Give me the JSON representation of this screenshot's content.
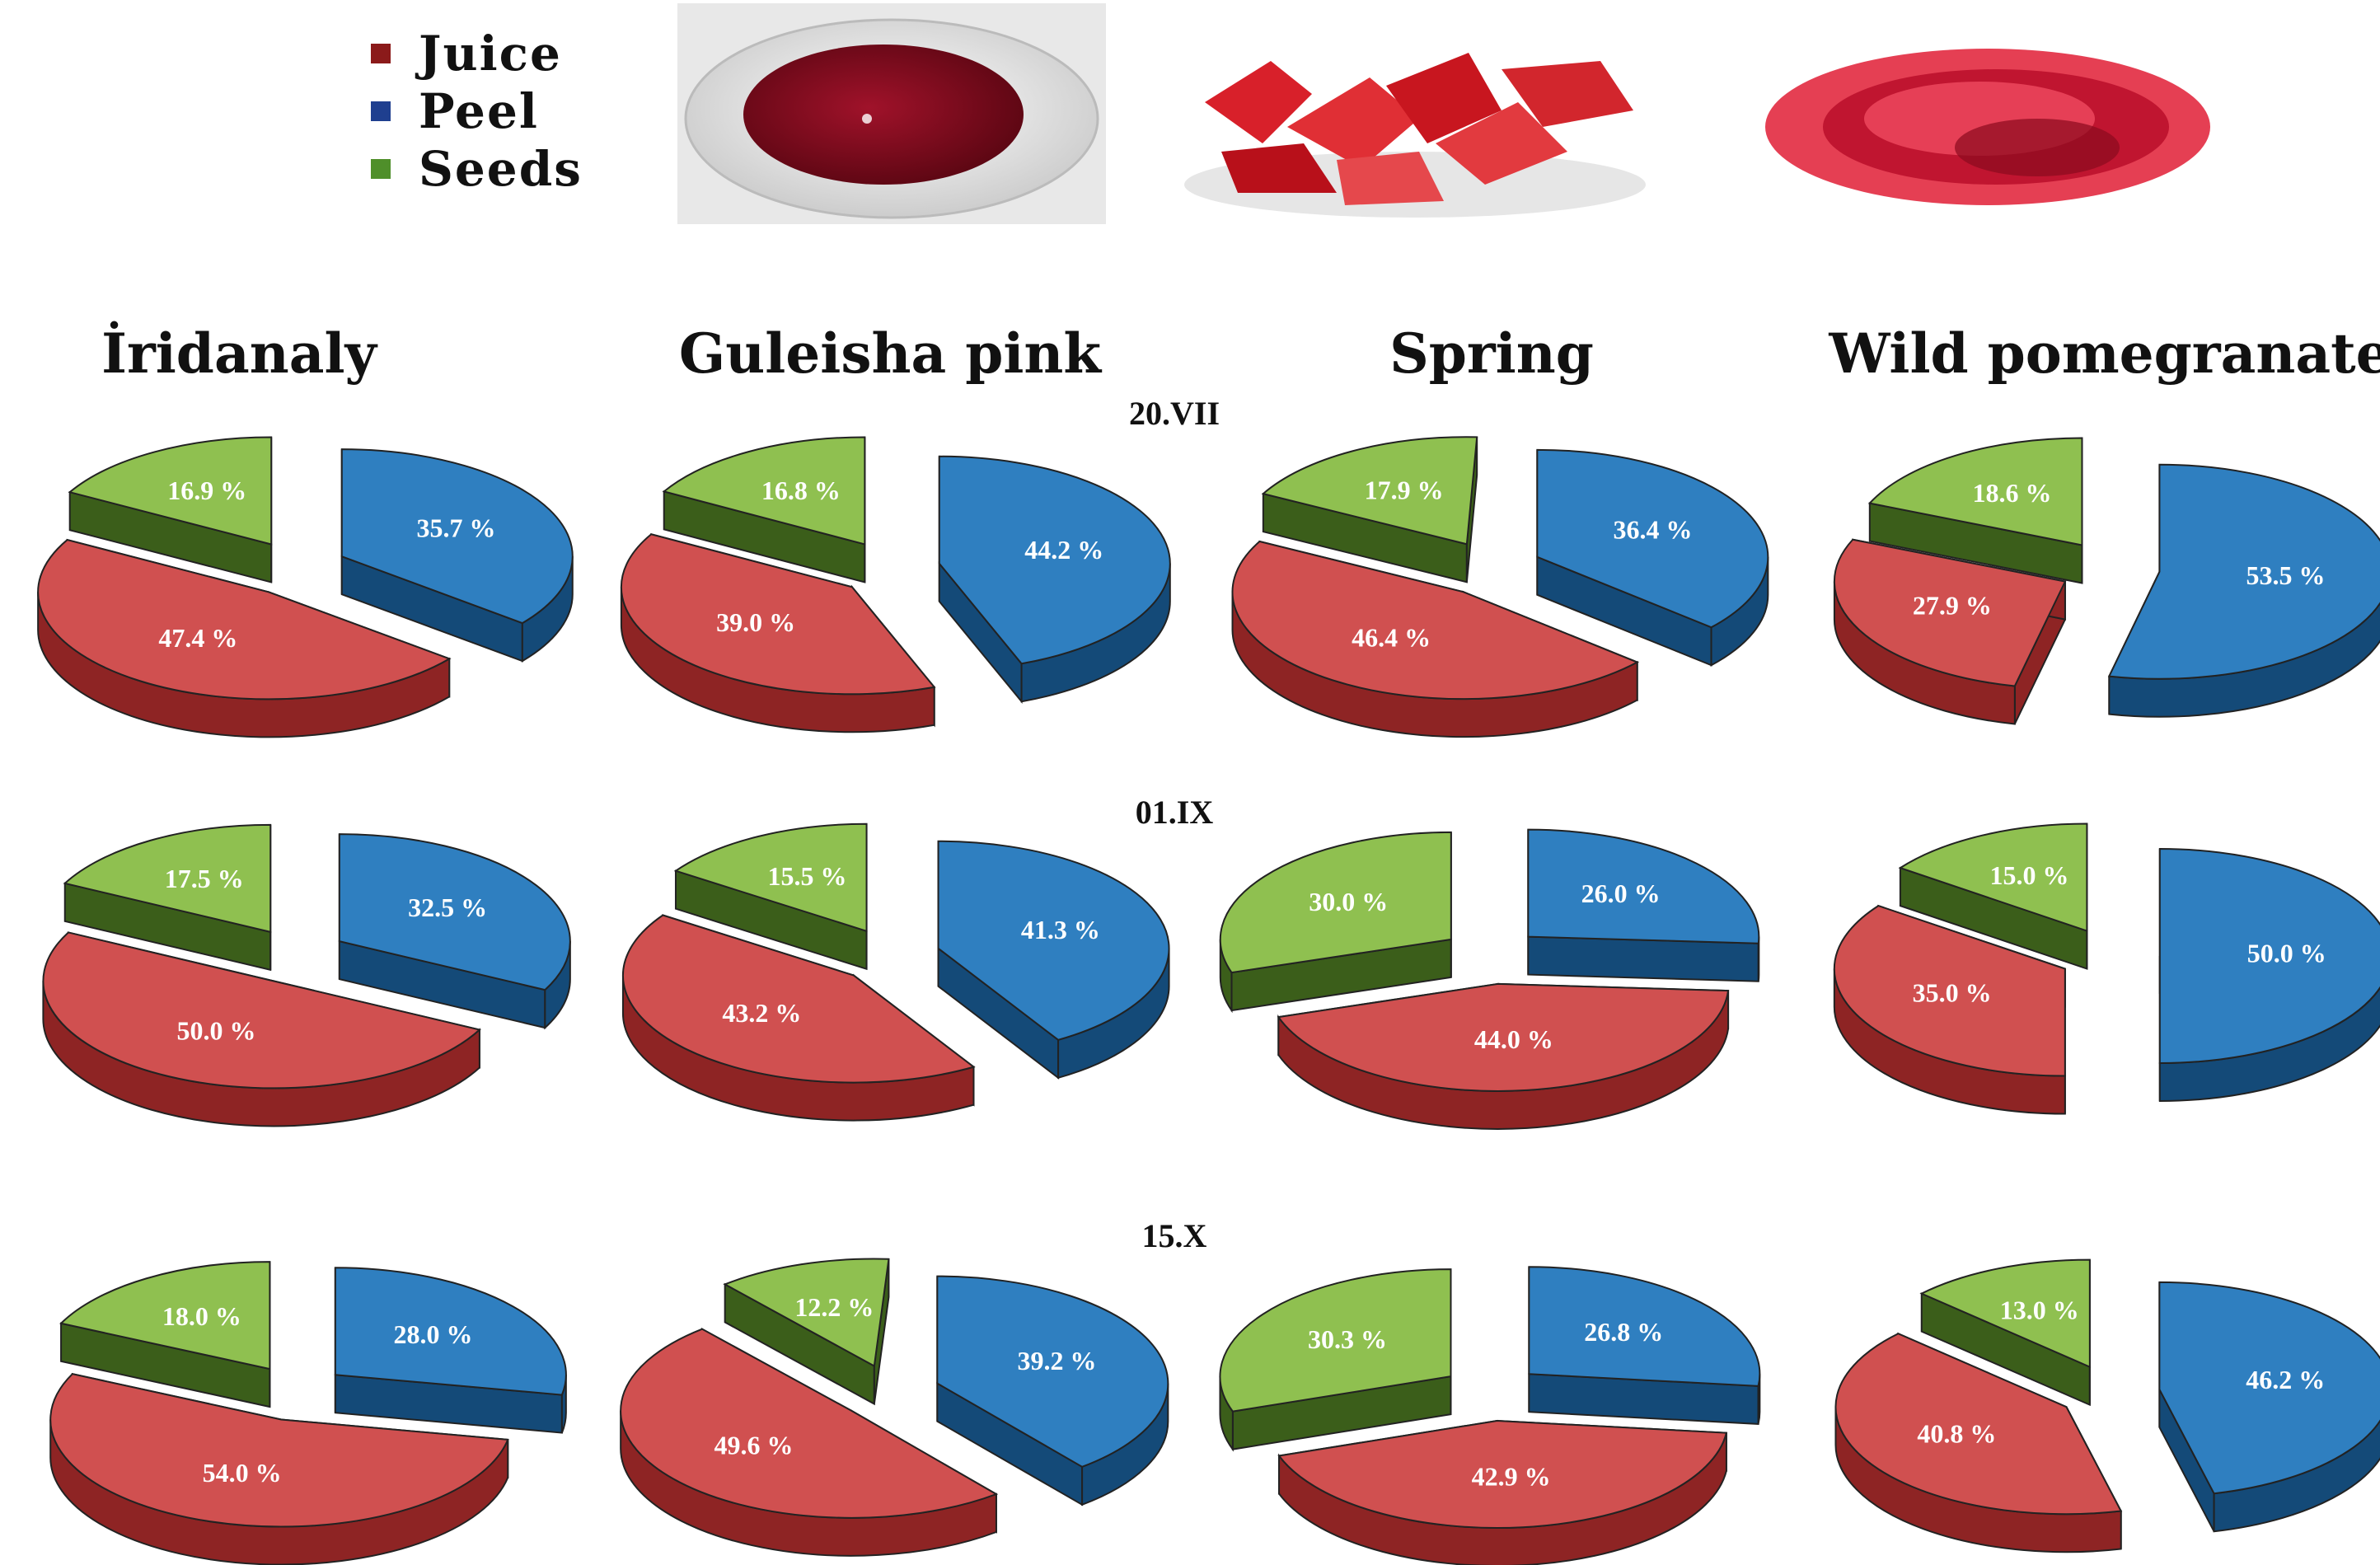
{
  "legend": [
    {
      "label": "Juice",
      "color": "#8b1a1a"
    },
    {
      "label": "Peel",
      "color": "#1f3f8f"
    },
    {
      "label": "Seeds",
      "color": "#4f8f2a"
    }
  ],
  "colors": {
    "juice_top": "#d05050",
    "juice_side": "#8e2424",
    "peel_top": "#2f7fc0",
    "peel_side": "#144a78",
    "seeds_top": "#8fc050",
    "seeds_side": "#3b5e1a",
    "outline": "#222222"
  },
  "photos": [
    {
      "name": "juice-bowl-photo"
    },
    {
      "name": "peel-pieces-photo"
    },
    {
      "name": "seeds-photo"
    }
  ],
  "varieties": [
    "İridanaly",
    "Guleisha pink",
    "Spring",
    "Wild pomegranate"
  ],
  "dates": [
    "20.VII",
    "01.IX",
    "15.X"
  ],
  "chart_data": {
    "type": "pie",
    "categories": [
      "Juice",
      "Peel",
      "Seeds"
    ],
    "unit": "%",
    "panels": [
      {
        "date": "20.VII",
        "variety": "İridanaly",
        "Juice": 47.4,
        "Peel": 35.7,
        "Seeds": 16.9
      },
      {
        "date": "20.VII",
        "variety": "Guleisha pink",
        "Juice": 39.0,
        "Peel": 44.2,
        "Seeds": 16.8
      },
      {
        "date": "20.VII",
        "variety": "Spring",
        "Juice": 46.4,
        "Peel": 36.4,
        "Seeds": 17.9
      },
      {
        "date": "20.VII",
        "variety": "Wild pomegranate",
        "Juice": 27.9,
        "Peel": 53.5,
        "Seeds": 18.6
      },
      {
        "date": "01.IX",
        "variety": "İridanaly",
        "Juice": 50.0,
        "Peel": 32.5,
        "Seeds": 17.5
      },
      {
        "date": "01.IX",
        "variety": "Guleisha pink",
        "Juice": 43.2,
        "Peel": 41.3,
        "Seeds": 15.5
      },
      {
        "date": "01.IX",
        "variety": "Spring",
        "Juice": 44.0,
        "Peel": 26.0,
        "Seeds": 30.0
      },
      {
        "date": "01.IX",
        "variety": "Wild pomegranate",
        "Juice": 35.0,
        "Peel": 50.0,
        "Seeds": 15.0
      },
      {
        "date": "15.X",
        "variety": "İridanaly",
        "Juice": 54.0,
        "Peel": 28.0,
        "Seeds": 18.0
      },
      {
        "date": "15.X",
        "variety": "Guleisha pink",
        "Juice": 49.6,
        "Peel": 39.2,
        "Seeds": 12.2
      },
      {
        "date": "15.X",
        "variety": "Spring",
        "Juice": 42.9,
        "Peel": 26.8,
        "Seeds": 30.3
      },
      {
        "date": "15.X",
        "variety": "Wild pomegranate",
        "Juice": 40.8,
        "Peel": 46.2,
        "Seeds": 13.0
      }
    ]
  }
}
